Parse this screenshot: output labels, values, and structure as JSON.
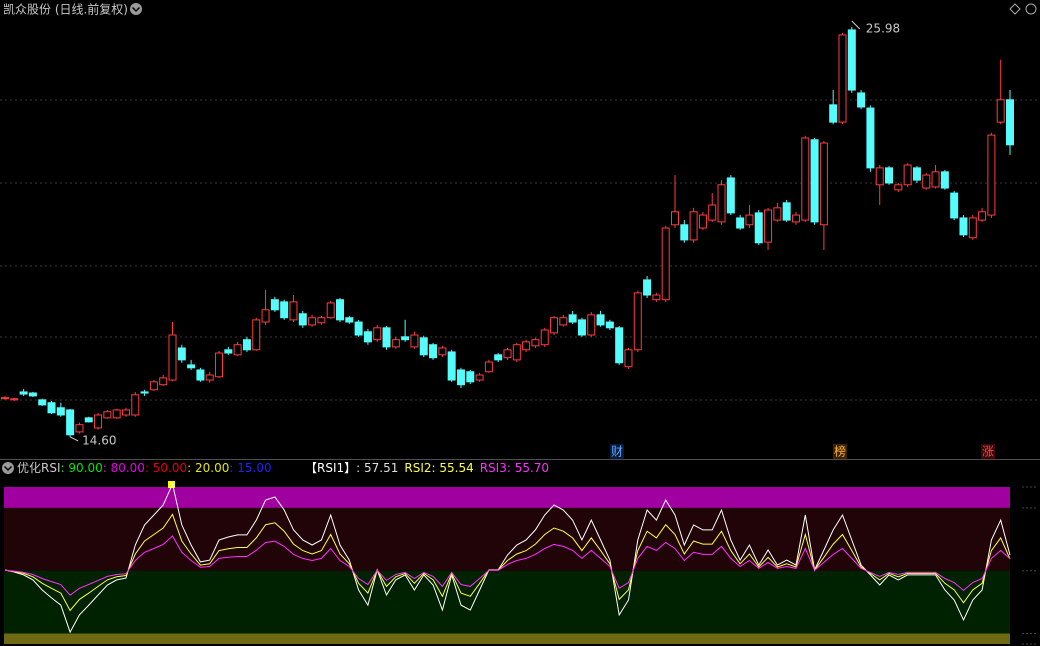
{
  "chart_data": [
    {
      "type": "candlestick",
      "title": "凯众股份 (日线.前复权)",
      "ylim": [
        13.96,
        26.73
      ],
      "up_color": "#ff3c3c",
      "down_color": "#54fcfc",
      "open": [
        15.69,
        15.63,
        15.85,
        15.82,
        15.63,
        15.55,
        15.41,
        15.35,
        14.74,
        15.13,
        14.85,
        15.13,
        15.13,
        15.21,
        15.21,
        15.85,
        15.91,
        16.05,
        16.18,
        17.07,
        16.6,
        16.46,
        16.18,
        16.27,
        17.02,
        16.88,
        17.3,
        17.02,
        17.79,
        18.41,
        18.35,
        17.85,
        18.02,
        17.71,
        17.77,
        17.91,
        18.41,
        17.91,
        17.79,
        17.52,
        17.3,
        17.63,
        17.1,
        17.38,
        17.1,
        17.35,
        17.16,
        16.88,
        16.96,
        16.46,
        16.41,
        16.18,
        16.41,
        16.88,
        16.8,
        16.74,
        17.02,
        17.13,
        17.16,
        17.49,
        17.71,
        17.99,
        17.85,
        17.43,
        17.99,
        17.79,
        17.63,
        16.55,
        17.02,
        18.96,
        18.41,
        18.41,
        20.49,
        20.49,
        20.07,
        20.4,
        20.62,
        20.57,
        21.79,
        20.68,
        20.49,
        20.82,
        20.01,
        20.62,
        21.1,
        20.57,
        20.62,
        22.85,
        20.49,
        23.82,
        23.34,
        25.9,
        24.15,
        23.73,
        21.6,
        22.07,
        21.46,
        21.6,
        22.07,
        21.51,
        21.54,
        21.96,
        21.37,
        20.68,
        20.13,
        20.62,
        20.76,
        23.34,
        23.96
      ],
      "high": [
        15.74,
        15.69,
        15.93,
        15.85,
        15.66,
        15.6,
        15.55,
        15.38,
        15.0,
        15.16,
        15.27,
        15.35,
        15.38,
        15.41,
        15.85,
        15.91,
        16.18,
        16.32,
        17.79,
        17.16,
        16.74,
        16.52,
        16.41,
        16.99,
        17.1,
        17.24,
        17.38,
        17.91,
        18.68,
        18.49,
        18.41,
        18.54,
        18.1,
        17.99,
        17.96,
        18.38,
        18.46,
        17.96,
        17.85,
        17.6,
        17.71,
        17.68,
        17.38,
        17.85,
        17.52,
        17.41,
        17.21,
        17.13,
        17.02,
        16.52,
        16.46,
        16.38,
        16.74,
        16.93,
        17.07,
        17.21,
        17.3,
        17.35,
        17.63,
        17.96,
        17.99,
        18.1,
        17.91,
        18.07,
        18.1,
        17.85,
        17.68,
        17.07,
        18.66,
        19.07,
        18.6,
        20.46,
        21.87,
        20.62,
        20.96,
        20.85,
        21.37,
        21.73,
        21.87,
        20.76,
        21.04,
        20.9,
        20.96,
        21.1,
        21.18,
        20.85,
        22.96,
        22.9,
        22.82,
        24.23,
        25.82,
        25.98,
        24.23,
        23.8,
        22.15,
        22.12,
        21.65,
        22.2,
        22.12,
        21.93,
        22.15,
        22.01,
        21.43,
        20.76,
        20.76,
        20.96,
        23.04,
        25.07,
        24.23
      ],
      "low": [
        15.63,
        15.6,
        15.74,
        15.71,
        15.46,
        15.24,
        15.16,
        14.6,
        14.7,
        15.0,
        14.8,
        15.1,
        15.1,
        15.16,
        15.16,
        15.74,
        15.88,
        16.02,
        16.15,
        16.66,
        16.46,
        16.13,
        16.1,
        16.24,
        16.88,
        16.85,
        16.96,
        16.99,
        17.71,
        18.07,
        17.85,
        17.79,
        17.63,
        17.66,
        17.71,
        17.88,
        17.79,
        17.74,
        17.38,
        17.16,
        17.24,
        17.02,
        17.05,
        17.24,
        17.05,
        16.82,
        16.74,
        16.82,
        16.13,
        15.96,
        16.07,
        16.13,
        16.38,
        16.68,
        16.74,
        16.68,
        16.96,
        17.07,
        17.1,
        17.43,
        17.66,
        17.74,
        17.38,
        17.38,
        17.66,
        17.57,
        16.6,
        16.49,
        16.96,
        18.46,
        18.35,
        18.35,
        20.4,
        19.99,
        19.99,
        20.35,
        20.57,
        20.49,
        20.76,
        20.35,
        20.4,
        19.93,
        19.79,
        20.57,
        20.57,
        20.49,
        20.57,
        20.49,
        19.79,
        23.28,
        23.28,
        24.15,
        23.7,
        21.96,
        21.04,
        21.6,
        21.4,
        21.54,
        21.65,
        21.46,
        21.5,
        21.46,
        20.62,
        20.15,
        20.07,
        20.57,
        20.68,
        23.28,
        22.43
      ],
      "close": [
        15.69,
        15.66,
        15.79,
        15.74,
        15.49,
        15.27,
        15.21,
        14.66,
        14.94,
        15.02,
        15.21,
        15.3,
        15.35,
        15.35,
        15.77,
        15.82,
        16.13,
        16.24,
        17.43,
        16.74,
        16.52,
        16.18,
        16.32,
        16.93,
        16.93,
        17.16,
        17.02,
        17.85,
        18.13,
        18.13,
        17.91,
        18.35,
        17.71,
        17.91,
        17.91,
        18.32,
        17.85,
        17.79,
        17.43,
        17.24,
        17.63,
        17.1,
        17.3,
        17.3,
        17.43,
        16.88,
        16.8,
        17.07,
        16.18,
        16.05,
        16.13,
        16.32,
        16.68,
        16.74,
        17.02,
        17.16,
        17.24,
        17.3,
        17.57,
        17.91,
        17.91,
        17.79,
        17.43,
        17.99,
        17.71,
        17.63,
        16.66,
        17.02,
        18.6,
        18.54,
        18.54,
        20.4,
        20.85,
        20.07,
        20.85,
        20.76,
        21.04,
        21.6,
        20.82,
        20.4,
        20.76,
        19.99,
        20.9,
        20.96,
        20.62,
        20.76,
        22.9,
        20.57,
        22.76,
        23.34,
        25.76,
        24.23,
        23.76,
        22.07,
        22.07,
        21.65,
        21.6,
        22.15,
        21.73,
        21.87,
        21.96,
        21.51,
        20.68,
        20.21,
        20.68,
        20.85,
        22.98,
        23.96,
        22.71
      ],
      "high_label": {
        "value": 25.98,
        "label": "25.98"
      },
      "low_label": {
        "value": 14.6,
        "label": "14.60"
      },
      "markers": [
        {
          "label": "财",
          "color": "#5aa8ff",
          "background": "#0a1a3a"
        },
        {
          "label": "榜",
          "color": "#ffb030",
          "background": "#3a2408"
        },
        {
          "label": "涨",
          "color": "#ff4040",
          "background": "#3a0a0a"
        }
      ]
    },
    {
      "type": "line",
      "title": "优化RSI",
      "ylim": [
        14.04,
        94.3
      ],
      "levels": [
        {
          "value": 90,
          "label": ": 90.00",
          "color": "#00e600",
          "band": "#a000a0"
        },
        {
          "value": 80,
          "label": ": 80.00",
          "color": "#e600e6",
          "band": "#200408"
        },
        {
          "value": 50,
          "label": ": 50.00",
          "color": "#e60000",
          "band": "#002200"
        },
        {
          "value": 20,
          "label": ": 20.00",
          "color": "#e6e600",
          "band": "#6e6a14"
        },
        {
          "value": 15,
          "label": ": 15.00",
          "color": "#2020ff"
        }
      ],
      "series": [
        {
          "name": "【RSI1】",
          "last_label": ": 57.51",
          "color": "#ffffff",
          "values": [
            50.4,
            49.4,
            48.0,
            45.6,
            40.8,
            37.0,
            33.6,
            20.7,
            28.9,
            33.6,
            38.4,
            43.2,
            45.6,
            46.5,
            62.3,
            71.9,
            76.6,
            81.4,
            91.4,
            71.9,
            62.3,
            54.2,
            55.1,
            64.7,
            66.1,
            67.1,
            67.1,
            74.2,
            83.8,
            85.2,
            79.0,
            69.5,
            64.7,
            62.3,
            64.7,
            76.6,
            62.3,
            55.1,
            40.8,
            33.6,
            50.4,
            38.4,
            45.6,
            48.0,
            40.8,
            48.0,
            43.2,
            31.2,
            48.0,
            33.6,
            31.2,
            40.8,
            50.4,
            50.4,
            57.5,
            62.3,
            64.7,
            69.5,
            76.6,
            81.4,
            79.0,
            74.2,
            64.7,
            74.2,
            64.7,
            55.1,
            28.9,
            36.0,
            64.7,
            79.0,
            74.2,
            83.8,
            76.6,
            62.3,
            71.9,
            69.5,
            69.5,
            79.0,
            64.7,
            55.1,
            62.3,
            52.7,
            59.9,
            52.7,
            55.1,
            52.7,
            76.6,
            50.4,
            59.9,
            69.5,
            76.6,
            64.7,
            52.7,
            48.0,
            43.2,
            48.0,
            45.6,
            48.0,
            48.0,
            48.0,
            48.0,
            40.8,
            36.0,
            26.5,
            36.0,
            40.8,
            64.7,
            74.2,
            57.51
          ]
        },
        {
          "name": "RSI2",
          "last_label": ": 55.54",
          "color": "#ffff40",
          "values": [
            50.3,
            49.6,
            48.7,
            47.1,
            44.0,
            41.6,
            39.3,
            31.0,
            36.3,
            39.3,
            42.5,
            45.6,
            47.1,
            47.7,
            58.0,
            64.2,
            67.3,
            70.4,
            76.9,
            64.2,
            58.0,
            52.7,
            53.3,
            59.6,
            60.5,
            61.1,
            61.1,
            65.7,
            72.0,
            72.9,
            68.9,
            62.7,
            59.6,
            58.0,
            59.6,
            67.3,
            58.0,
            53.3,
            44.0,
            39.3,
            50.3,
            42.5,
            47.1,
            48.7,
            44.0,
            48.7,
            45.6,
            37.8,
            48.7,
            39.3,
            37.8,
            44.0,
            50.3,
            50.3,
            54.9,
            58.0,
            59.6,
            62.7,
            67.3,
            70.4,
            68.9,
            65.7,
            59.6,
            65.7,
            59.6,
            53.3,
            36.3,
            40.9,
            59.6,
            68.9,
            65.7,
            72.0,
            67.3,
            58.0,
            64.2,
            62.7,
            62.7,
            68.9,
            59.6,
            53.3,
            58.0,
            51.8,
            56.4,
            51.8,
            53.3,
            51.8,
            67.3,
            50.3,
            56.4,
            62.7,
            67.3,
            59.6,
            51.8,
            48.7,
            45.6,
            48.7,
            47.1,
            48.7,
            48.7,
            48.7,
            48.7,
            44.0,
            40.9,
            34.7,
            40.9,
            44.0,
            59.6,
            65.7,
            55.54
          ]
        },
        {
          "name": "RSI3",
          "last_label": ": 55.70",
          "color": "#ff30ff",
          "values": [
            50.2,
            49.8,
            49.2,
            48.2,
            46.3,
            44.8,
            43.4,
            38.3,
            41.6,
            43.4,
            45.4,
            47.3,
            48.2,
            48.6,
            54.9,
            58.8,
            60.6,
            62.6,
            66.6,
            58.8,
            54.9,
            51.7,
            52.0,
            55.9,
            56.4,
            56.8,
            56.8,
            59.7,
            63.5,
            64.1,
            61.6,
            57.8,
            55.9,
            54.9,
            55.9,
            60.6,
            54.9,
            52.0,
            46.3,
            43.4,
            50.2,
            45.4,
            48.2,
            49.2,
            46.3,
            49.2,
            47.3,
            42.5,
            49.2,
            43.4,
            42.5,
            46.3,
            50.2,
            50.2,
            53.0,
            54.9,
            55.9,
            57.8,
            60.6,
            62.6,
            61.6,
            59.7,
            55.9,
            59.7,
            55.9,
            52.0,
            41.6,
            44.4,
            55.9,
            61.6,
            59.7,
            63.5,
            60.6,
            54.9,
            58.8,
            57.8,
            57.8,
            61.6,
            55.9,
            52.0,
            54.9,
            51.1,
            54.0,
            51.1,
            52.0,
            51.1,
            60.6,
            50.2,
            54.0,
            57.8,
            60.6,
            55.9,
            51.1,
            49.2,
            47.3,
            49.2,
            48.2,
            49.2,
            49.2,
            49.2,
            49.2,
            46.3,
            44.4,
            40.6,
            44.4,
            46.3,
            55.9,
            59.7,
            55.7
          ]
        }
      ]
    }
  ]
}
